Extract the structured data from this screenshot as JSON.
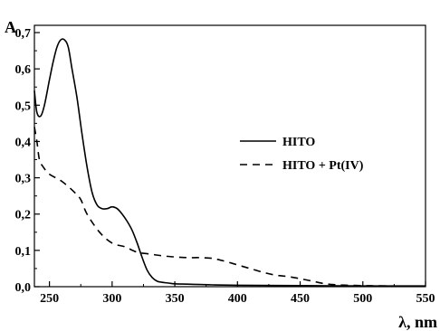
{
  "chart_data": {
    "type": "line",
    "title": "",
    "xlabel": "λ, nm",
    "ylabel": "A",
    "xlim": [
      238,
      550
    ],
    "ylim": [
      0.0,
      0.72
    ],
    "x_ticks": [
      250,
      300,
      350,
      400,
      450,
      500,
      550
    ],
    "x_tick_labels": [
      "250",
      "300",
      "350",
      "400",
      "450",
      "500",
      "550"
    ],
    "y_ticks": [
      0.0,
      0.1,
      0.2,
      0.3,
      0.4,
      0.5,
      0.6,
      0.7
    ],
    "y_tick_labels": [
      "0,0",
      "0,1",
      "0,2",
      "0,3",
      "0,4",
      "0,5",
      "0,6",
      "0,7"
    ],
    "grid": false,
    "legend_position": "center-right",
    "series": [
      {
        "name": "HITO",
        "style": "solid",
        "color": "#000000",
        "x": [
          238,
          240,
          243,
          246,
          250,
          253,
          256,
          259,
          262,
          265,
          268,
          272,
          276,
          280,
          284,
          288,
          292,
          296,
          300,
          304,
          308,
          312,
          316,
          320,
          324,
          328,
          332,
          336,
          340,
          345,
          350,
          360,
          370,
          380,
          400,
          450,
          500,
          550
        ],
        "y": [
          0.54,
          0.48,
          0.47,
          0.5,
          0.57,
          0.62,
          0.66,
          0.68,
          0.68,
          0.66,
          0.6,
          0.52,
          0.42,
          0.33,
          0.26,
          0.225,
          0.215,
          0.215,
          0.22,
          0.215,
          0.2,
          0.18,
          0.155,
          0.12,
          0.08,
          0.045,
          0.025,
          0.015,
          0.012,
          0.01,
          0.008,
          0.007,
          0.006,
          0.005,
          0.004,
          0.003,
          0.002,
          0.002
        ]
      },
      {
        "name": "HITO + Pt(IV)",
        "style": "dashed",
        "color": "#000000",
        "x": [
          238,
          240,
          242,
          245,
          250,
          260,
          270,
          275,
          280,
          290,
          300,
          310,
          320,
          330,
          340,
          350,
          360,
          370,
          380,
          390,
          400,
          410,
          420,
          430,
          440,
          450,
          460,
          470,
          480,
          500,
          520,
          550
        ],
        "y": [
          0.44,
          0.4,
          0.35,
          0.33,
          0.31,
          0.29,
          0.26,
          0.24,
          0.2,
          0.15,
          0.12,
          0.11,
          0.095,
          0.09,
          0.085,
          0.082,
          0.08,
          0.08,
          0.078,
          0.07,
          0.06,
          0.05,
          0.04,
          0.032,
          0.028,
          0.022,
          0.015,
          0.008,
          0.005,
          0.003,
          0.002,
          0.001
        ]
      }
    ]
  }
}
